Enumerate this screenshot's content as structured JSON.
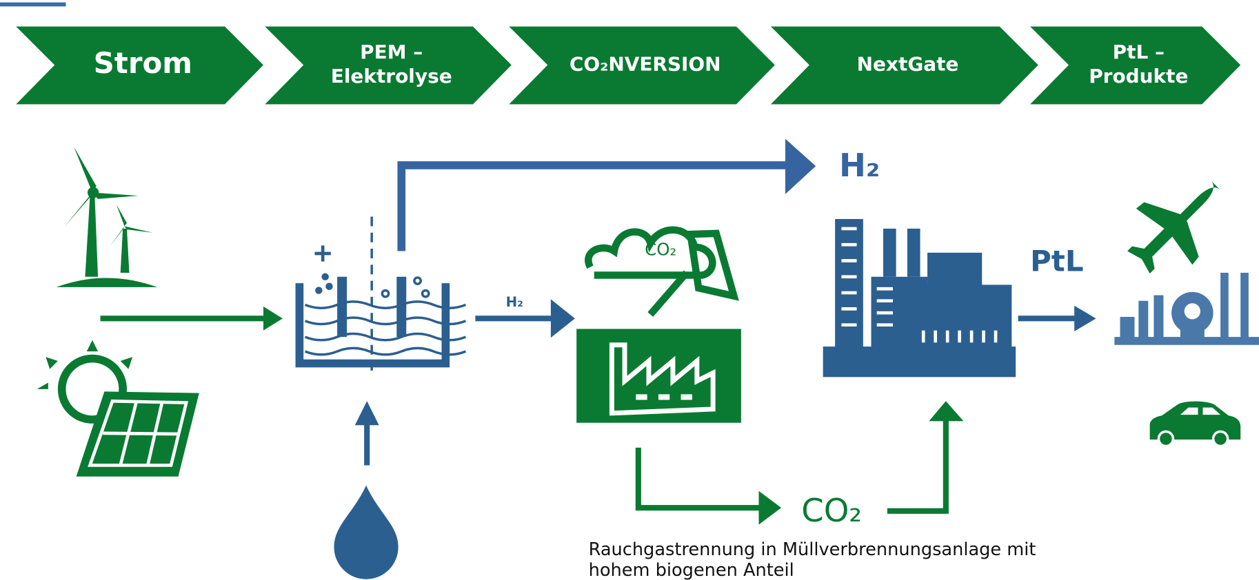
{
  "header": {
    "steps": [
      {
        "lines": [
          "Strom"
        ]
      },
      {
        "lines": [
          "PEM –",
          "Elektrolyse"
        ]
      },
      {
        "lines": [
          "CO₂NVERSION"
        ]
      },
      {
        "lines": [
          "NextGate"
        ]
      },
      {
        "lines": [
          "PtL –",
          "Produkte"
        ]
      }
    ]
  },
  "labels": {
    "h2_top": "H₂",
    "h2_small": "H₂",
    "co2_cloud": "CO₂",
    "ptl": "PtL",
    "co2_bottom": "CO₂"
  },
  "caption": {
    "lines": [
      "Rauchgastrennung in Müllverbrennungsanlage mit",
      "hohem biogenen Anteil"
    ]
  }
}
